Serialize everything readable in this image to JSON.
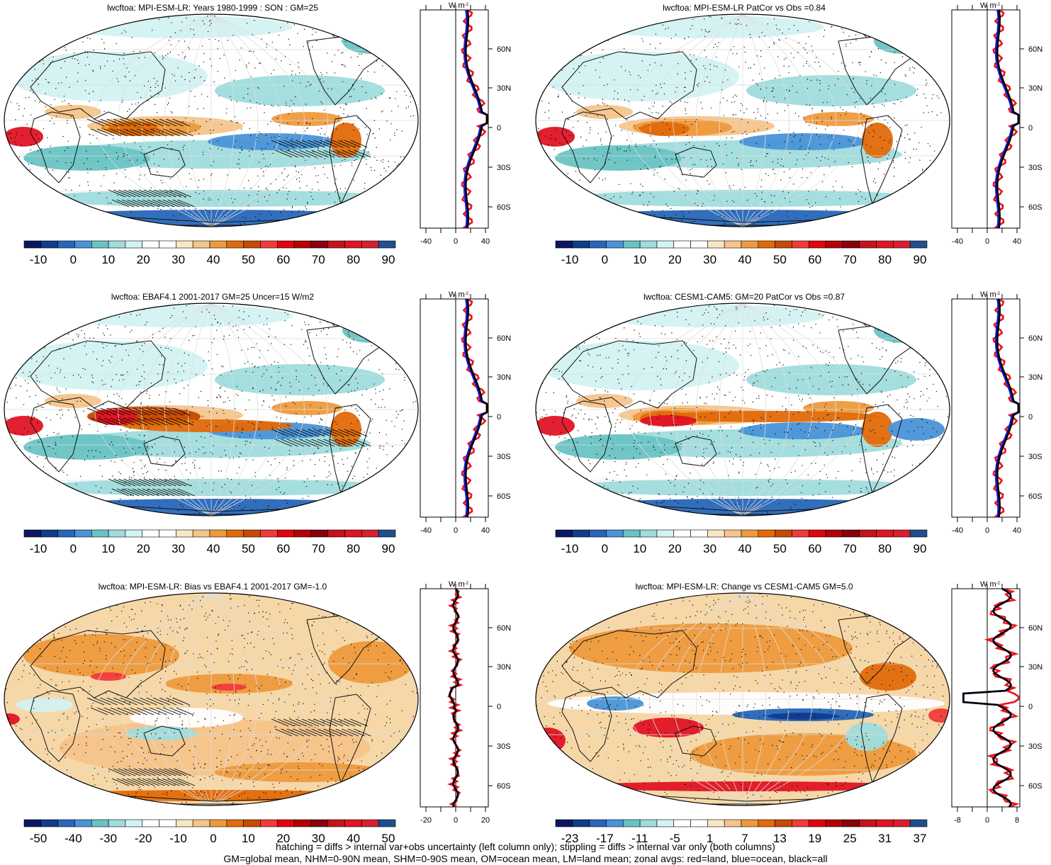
{
  "panels": [
    {
      "title": "lwcftoa: MPI-ESM-LR: Years 1980-1999 : SON : GM=25",
      "col": 0,
      "row": 0,
      "kind": "abs",
      "zonal_ticks": [
        "-40",
        "0",
        "40"
      ],
      "lat_ticks": [
        "60N",
        "30N",
        "0",
        "30S",
        "60S"
      ],
      "unit": "W m",
      "cbar_labels": [
        "-10",
        "0",
        "10",
        "20",
        "30",
        "40",
        "50",
        "60",
        "70",
        "80",
        "90"
      ]
    },
    {
      "title": "lwcftoa: MPI-ESM-LR PatCor vs Obs =0.84",
      "col": 1,
      "row": 0,
      "kind": "abs",
      "zonal_ticks": [
        "-40",
        "0",
        "40"
      ],
      "lat_ticks": [
        "60N",
        "30N",
        "0",
        "30S",
        "60S"
      ],
      "unit": "W m",
      "cbar_labels": [
        "-10",
        "0",
        "10",
        "20",
        "30",
        "40",
        "50",
        "60",
        "70",
        "80",
        "90"
      ]
    },
    {
      "title": "lwcftoa: EBAF4.1 2001-2017 GM=25 Uncer=15 W/m2",
      "col": 0,
      "row": 1,
      "kind": "abs",
      "zonal_ticks": [
        "-40",
        "0",
        "40"
      ],
      "lat_ticks": [
        "60N",
        "30N",
        "0",
        "30S",
        "60S"
      ],
      "unit": "W m",
      "cbar_labels": [
        "-10",
        "0",
        "10",
        "20",
        "30",
        "40",
        "50",
        "60",
        "70",
        "80",
        "90"
      ]
    },
    {
      "title": "lwcftoa: CESM1-CAM5: GM=20 PatCor vs Obs =0.87",
      "col": 1,
      "row": 1,
      "kind": "abs",
      "zonal_ticks": [
        "-40",
        "0",
        "40"
      ],
      "lat_ticks": [
        "60N",
        "30N",
        "0",
        "30S",
        "60S"
      ],
      "unit": "W m",
      "cbar_labels": [
        "-10",
        "0",
        "10",
        "20",
        "30",
        "40",
        "50",
        "60",
        "70",
        "80",
        "90"
      ]
    },
    {
      "title": "lwcftoa: MPI-ESM-LR: Bias vs EBAF4.1 2001-2017  GM=-1.0",
      "col": 0,
      "row": 2,
      "kind": "bias",
      "zonal_ticks": [
        "-20",
        "0",
        "20"
      ],
      "lat_ticks": [
        "60N",
        "30N",
        "0",
        "30S",
        "60S"
      ],
      "unit": "W m",
      "cbar_labels": [
        "-50",
        "-40",
        "-30",
        "-20",
        "-10",
        "0",
        "10",
        "20",
        "30",
        "40",
        "50"
      ]
    },
    {
      "title": "lwcftoa: MPI-ESM-LR: Change vs CESM1-CAM5 GM=5.0",
      "col": 1,
      "row": 2,
      "kind": "change",
      "zonal_ticks": [
        "-8",
        "0",
        "8"
      ],
      "lat_ticks": [
        "60N",
        "30N",
        "0",
        "30S",
        "60S"
      ],
      "unit": "W m",
      "cbar_labels": [
        "-23",
        "-17",
        "-11",
        "-5",
        "1",
        "7",
        "13",
        "19",
        "25",
        "31",
        "37"
      ]
    }
  ],
  "legend": {
    "unit_superscript": "-2"
  },
  "colors": {
    "zonal_land": "#e8141b",
    "zonal_ocean": "#1a1adf",
    "zonal_all": "#000000",
    "cbar": [
      "#0d1660",
      "#103c8c",
      "#2766b8",
      "#4a93d8",
      "#6ac3c3",
      "#9fdcdc",
      "#d3f2f2",
      "#ffffff",
      "#ffffff",
      "#f8e7c5",
      "#f5c48a",
      "#ee9a3c",
      "#e26a0a",
      "#c64a06",
      "#f03b3b",
      "#e1050c",
      "#b40008",
      "#87000c",
      "#c4141b",
      "#e01424",
      "#d62030",
      "#1f4f8e"
    ]
  },
  "footer": [
    "hatching = diffs > internal var+obs uncertainty (left column only); stippling = diffs > internal var only (both columns)",
    "GM=global mean, NHM=0-90N mean, SHM=0-90S mean, OM=ocean mean, LM=land mean; zonal avgs: red=land, blue=ocean, black=all"
  ]
}
